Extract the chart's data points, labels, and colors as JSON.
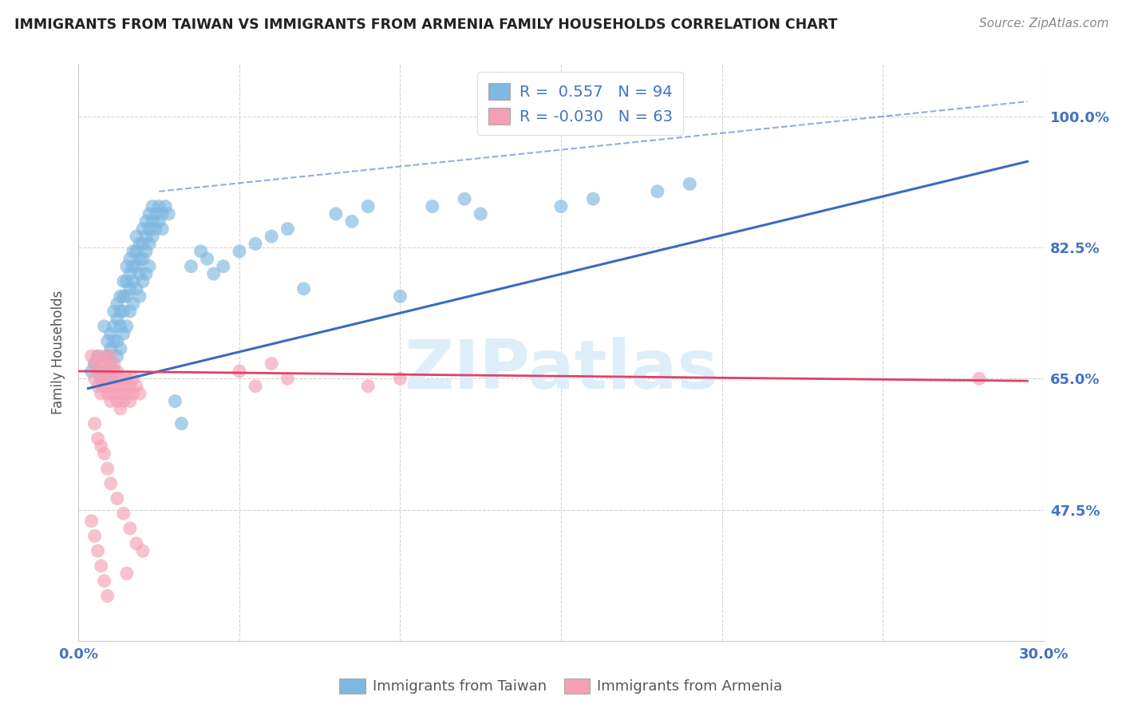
{
  "title": "IMMIGRANTS FROM TAIWAN VS IMMIGRANTS FROM ARMENIA FAMILY HOUSEHOLDS CORRELATION CHART",
  "source": "Source: ZipAtlas.com",
  "ylabel": "Family Households",
  "ytick_vals": [
    1.0,
    0.825,
    0.65,
    0.475
  ],
  "ytick_labels": [
    "100.0%",
    "82.5%",
    "65.0%",
    "47.5%"
  ],
  "xrange": [
    0.0,
    0.3
  ],
  "yrange": [
    0.3,
    1.07
  ],
  "taiwan_R": 0.557,
  "taiwan_N": 94,
  "armenia_R": -0.03,
  "armenia_N": 63,
  "taiwan_color": "#7fb8e0",
  "armenia_color": "#f5a0b5",
  "taiwan_line_color": "#3a6bbf",
  "armenia_line_color": "#e0406a",
  "axis_label_color": "#4472c4",
  "taiwan_scatter": [
    [
      0.004,
      0.66
    ],
    [
      0.005,
      0.67
    ],
    [
      0.006,
      0.68
    ],
    [
      0.007,
      0.65
    ],
    [
      0.008,
      0.66
    ],
    [
      0.008,
      0.72
    ],
    [
      0.009,
      0.68
    ],
    [
      0.009,
      0.7
    ],
    [
      0.01,
      0.69
    ],
    [
      0.01,
      0.71
    ],
    [
      0.01,
      0.65
    ],
    [
      0.01,
      0.67
    ],
    [
      0.011,
      0.7
    ],
    [
      0.011,
      0.72
    ],
    [
      0.011,
      0.74
    ],
    [
      0.011,
      0.66
    ],
    [
      0.012,
      0.73
    ],
    [
      0.012,
      0.75
    ],
    [
      0.012,
      0.7
    ],
    [
      0.012,
      0.68
    ],
    [
      0.013,
      0.76
    ],
    [
      0.013,
      0.74
    ],
    [
      0.013,
      0.72
    ],
    [
      0.013,
      0.69
    ],
    [
      0.014,
      0.78
    ],
    [
      0.014,
      0.76
    ],
    [
      0.014,
      0.74
    ],
    [
      0.014,
      0.71
    ],
    [
      0.015,
      0.8
    ],
    [
      0.015,
      0.78
    ],
    [
      0.015,
      0.76
    ],
    [
      0.015,
      0.72
    ],
    [
      0.016,
      0.81
    ],
    [
      0.016,
      0.79
    ],
    [
      0.016,
      0.77
    ],
    [
      0.016,
      0.74
    ],
    [
      0.017,
      0.82
    ],
    [
      0.017,
      0.8
    ],
    [
      0.017,
      0.78
    ],
    [
      0.017,
      0.75
    ],
    [
      0.018,
      0.84
    ],
    [
      0.018,
      0.82
    ],
    [
      0.018,
      0.8
    ],
    [
      0.018,
      0.77
    ],
    [
      0.019,
      0.83
    ],
    [
      0.019,
      0.81
    ],
    [
      0.019,
      0.79
    ],
    [
      0.019,
      0.76
    ],
    [
      0.02,
      0.85
    ],
    [
      0.02,
      0.83
    ],
    [
      0.02,
      0.81
    ],
    [
      0.02,
      0.78
    ],
    [
      0.021,
      0.86
    ],
    [
      0.021,
      0.84
    ],
    [
      0.021,
      0.82
    ],
    [
      0.021,
      0.79
    ],
    [
      0.022,
      0.87
    ],
    [
      0.022,
      0.85
    ],
    [
      0.022,
      0.83
    ],
    [
      0.022,
      0.8
    ],
    [
      0.023,
      0.88
    ],
    [
      0.023,
      0.86
    ],
    [
      0.023,
      0.84
    ],
    [
      0.024,
      0.87
    ],
    [
      0.024,
      0.85
    ],
    [
      0.025,
      0.88
    ],
    [
      0.025,
      0.86
    ],
    [
      0.026,
      0.87
    ],
    [
      0.026,
      0.85
    ],
    [
      0.027,
      0.88
    ],
    [
      0.028,
      0.87
    ],
    [
      0.03,
      0.62
    ],
    [
      0.032,
      0.59
    ],
    [
      0.035,
      0.8
    ],
    [
      0.038,
      0.82
    ],
    [
      0.04,
      0.81
    ],
    [
      0.042,
      0.79
    ],
    [
      0.045,
      0.8
    ],
    [
      0.05,
      0.82
    ],
    [
      0.055,
      0.83
    ],
    [
      0.06,
      0.84
    ],
    [
      0.065,
      0.85
    ],
    [
      0.07,
      0.77
    ],
    [
      0.08,
      0.87
    ],
    [
      0.085,
      0.86
    ],
    [
      0.09,
      0.88
    ],
    [
      0.1,
      0.76
    ],
    [
      0.11,
      0.88
    ],
    [
      0.12,
      0.89
    ],
    [
      0.125,
      0.87
    ],
    [
      0.15,
      0.88
    ],
    [
      0.16,
      0.89
    ],
    [
      0.18,
      0.9
    ],
    [
      0.19,
      0.91
    ]
  ],
  "armenia_scatter": [
    [
      0.004,
      0.68
    ],
    [
      0.005,
      0.67
    ],
    [
      0.005,
      0.65
    ],
    [
      0.006,
      0.68
    ],
    [
      0.006,
      0.66
    ],
    [
      0.006,
      0.64
    ],
    [
      0.007,
      0.67
    ],
    [
      0.007,
      0.65
    ],
    [
      0.007,
      0.63
    ],
    [
      0.008,
      0.68
    ],
    [
      0.008,
      0.66
    ],
    [
      0.008,
      0.64
    ],
    [
      0.009,
      0.67
    ],
    [
      0.009,
      0.65
    ],
    [
      0.009,
      0.63
    ],
    [
      0.01,
      0.68
    ],
    [
      0.01,
      0.66
    ],
    [
      0.01,
      0.64
    ],
    [
      0.01,
      0.62
    ],
    [
      0.011,
      0.67
    ],
    [
      0.011,
      0.65
    ],
    [
      0.011,
      0.63
    ],
    [
      0.012,
      0.66
    ],
    [
      0.012,
      0.64
    ],
    [
      0.012,
      0.62
    ],
    [
      0.013,
      0.65
    ],
    [
      0.013,
      0.63
    ],
    [
      0.013,
      0.61
    ],
    [
      0.014,
      0.64
    ],
    [
      0.014,
      0.62
    ],
    [
      0.015,
      0.65
    ],
    [
      0.015,
      0.63
    ],
    [
      0.016,
      0.64
    ],
    [
      0.016,
      0.62
    ],
    [
      0.017,
      0.65
    ],
    [
      0.017,
      0.63
    ],
    [
      0.018,
      0.64
    ],
    [
      0.019,
      0.63
    ],
    [
      0.005,
      0.59
    ],
    [
      0.006,
      0.57
    ],
    [
      0.007,
      0.56
    ],
    [
      0.008,
      0.55
    ],
    [
      0.009,
      0.53
    ],
    [
      0.01,
      0.51
    ],
    [
      0.012,
      0.49
    ],
    [
      0.014,
      0.47
    ],
    [
      0.016,
      0.45
    ],
    [
      0.018,
      0.43
    ],
    [
      0.004,
      0.46
    ],
    [
      0.005,
      0.44
    ],
    [
      0.006,
      0.42
    ],
    [
      0.007,
      0.4
    ],
    [
      0.008,
      0.38
    ],
    [
      0.009,
      0.36
    ],
    [
      0.015,
      0.39
    ],
    [
      0.02,
      0.42
    ],
    [
      0.05,
      0.66
    ],
    [
      0.055,
      0.64
    ],
    [
      0.06,
      0.67
    ],
    [
      0.065,
      0.65
    ],
    [
      0.09,
      0.64
    ],
    [
      0.1,
      0.65
    ],
    [
      0.28,
      0.65
    ]
  ],
  "taiwan_line_pts": [
    [
      0.003,
      0.637
    ],
    [
      0.295,
      0.94
    ]
  ],
  "armenia_line_pts": [
    [
      0.0,
      0.66
    ],
    [
      0.295,
      0.647
    ]
  ],
  "dashed_line_pts": [
    [
      0.025,
      0.9
    ],
    [
      0.295,
      1.02
    ]
  ]
}
